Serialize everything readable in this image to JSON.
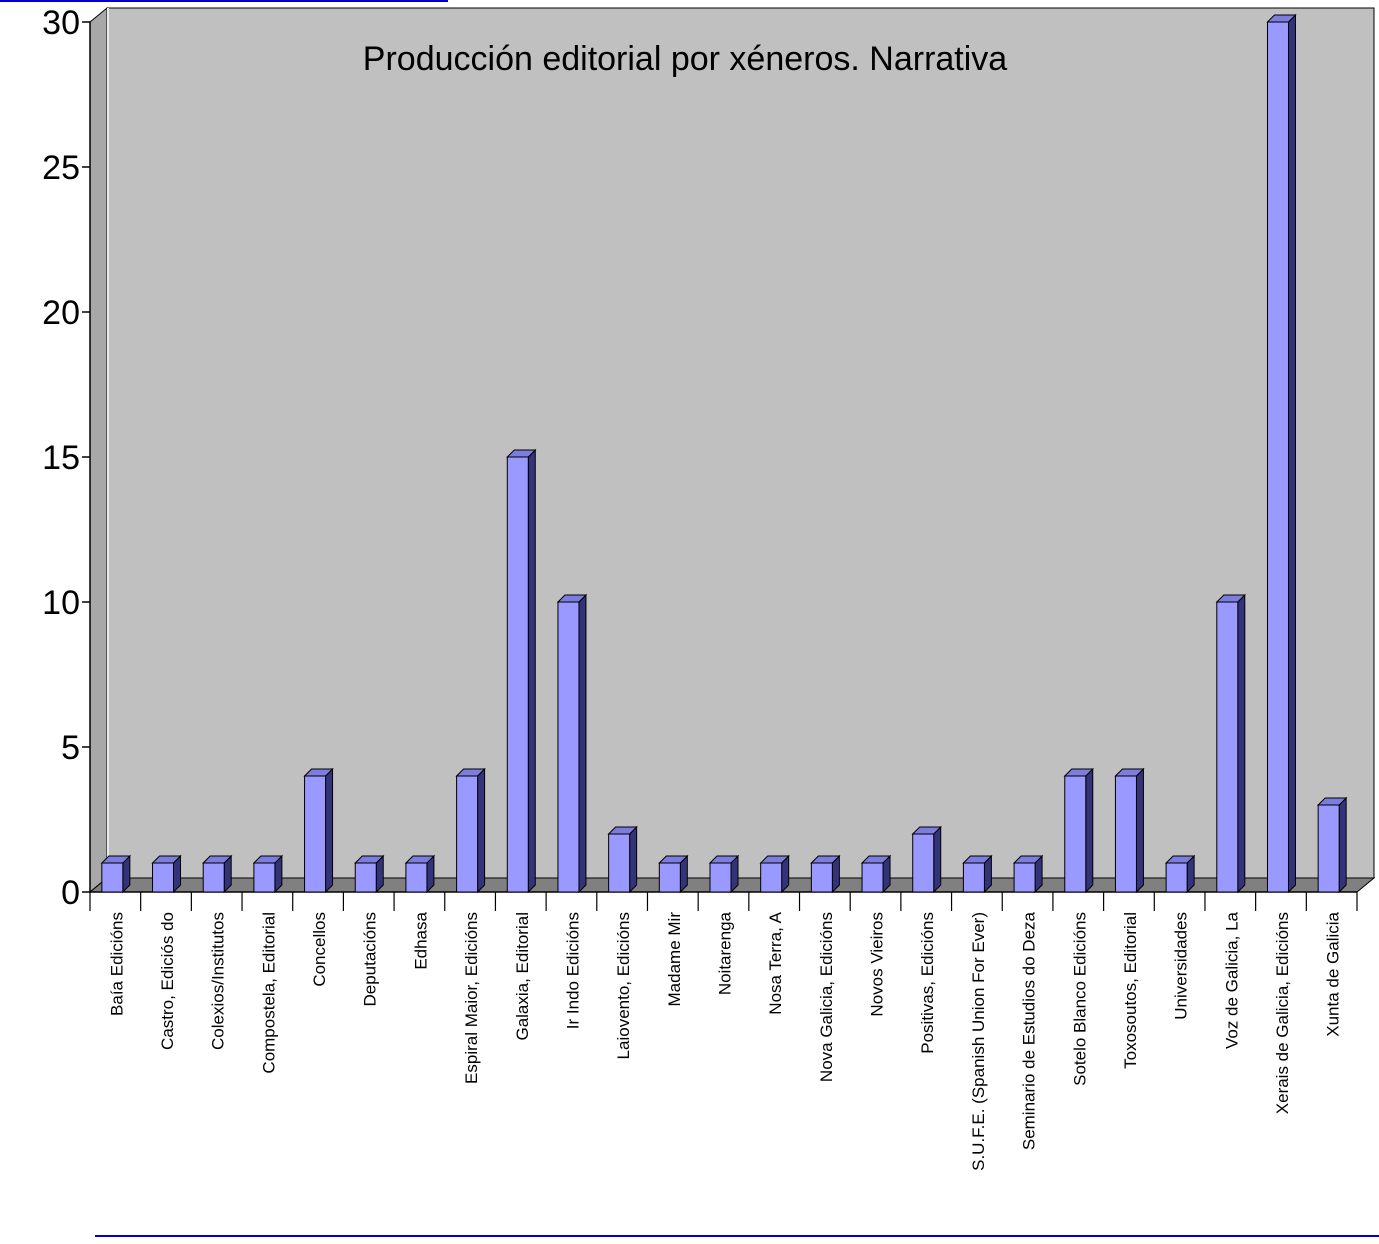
{
  "chart_data": {
    "type": "bar",
    "title": "Producción editorial por xéneros. Narrativa",
    "xlabel": "",
    "ylabel": "",
    "ylim": [
      0,
      30
    ],
    "yticks": [
      "0",
      "5",
      "10",
      "15",
      "20",
      "25",
      "30"
    ],
    "grid": false,
    "legend": "none",
    "three_d": true,
    "categories": [
      "Baía Edicións",
      "Castro, Ediciós do",
      "Colexios/Institutos",
      "Compostela, Editorial",
      "Concellos",
      "Deputacións",
      "Edhasa",
      "Espiral Maior, Edicións",
      "Galaxia, Editorial",
      "Ir Indo Edicións",
      "Laiovento, Edicións",
      "Madame Mir",
      "Noitarenga",
      "Nosa Terra, A",
      "Nova Galicia, Edicións",
      "Novos Vieiros",
      "Positivas, Edicións",
      "S.U.F.E. (Spanish Union For Ever)",
      "Seminario de Estudios do Deza",
      "Sotelo Blanco Edicións",
      "Toxosoutos, Editorial",
      "Universidades",
      "Voz de Galicia, La",
      "Xerais de Galicia, Edicións",
      "Xunta de Galicia"
    ],
    "values": [
      1,
      1,
      1,
      1,
      4,
      1,
      1,
      4,
      15,
      10,
      2,
      1,
      1,
      1,
      1,
      1,
      2,
      1,
      1,
      4,
      4,
      1,
      10,
      30,
      3
    ],
    "colors": {
      "bar_front": "#9999ff",
      "bar_side": "#33337a",
      "bar_top": "#7d7ddd",
      "plot_wall": "#c0c0c0",
      "floor": "#808080",
      "accent_line": "#0000cc"
    }
  }
}
